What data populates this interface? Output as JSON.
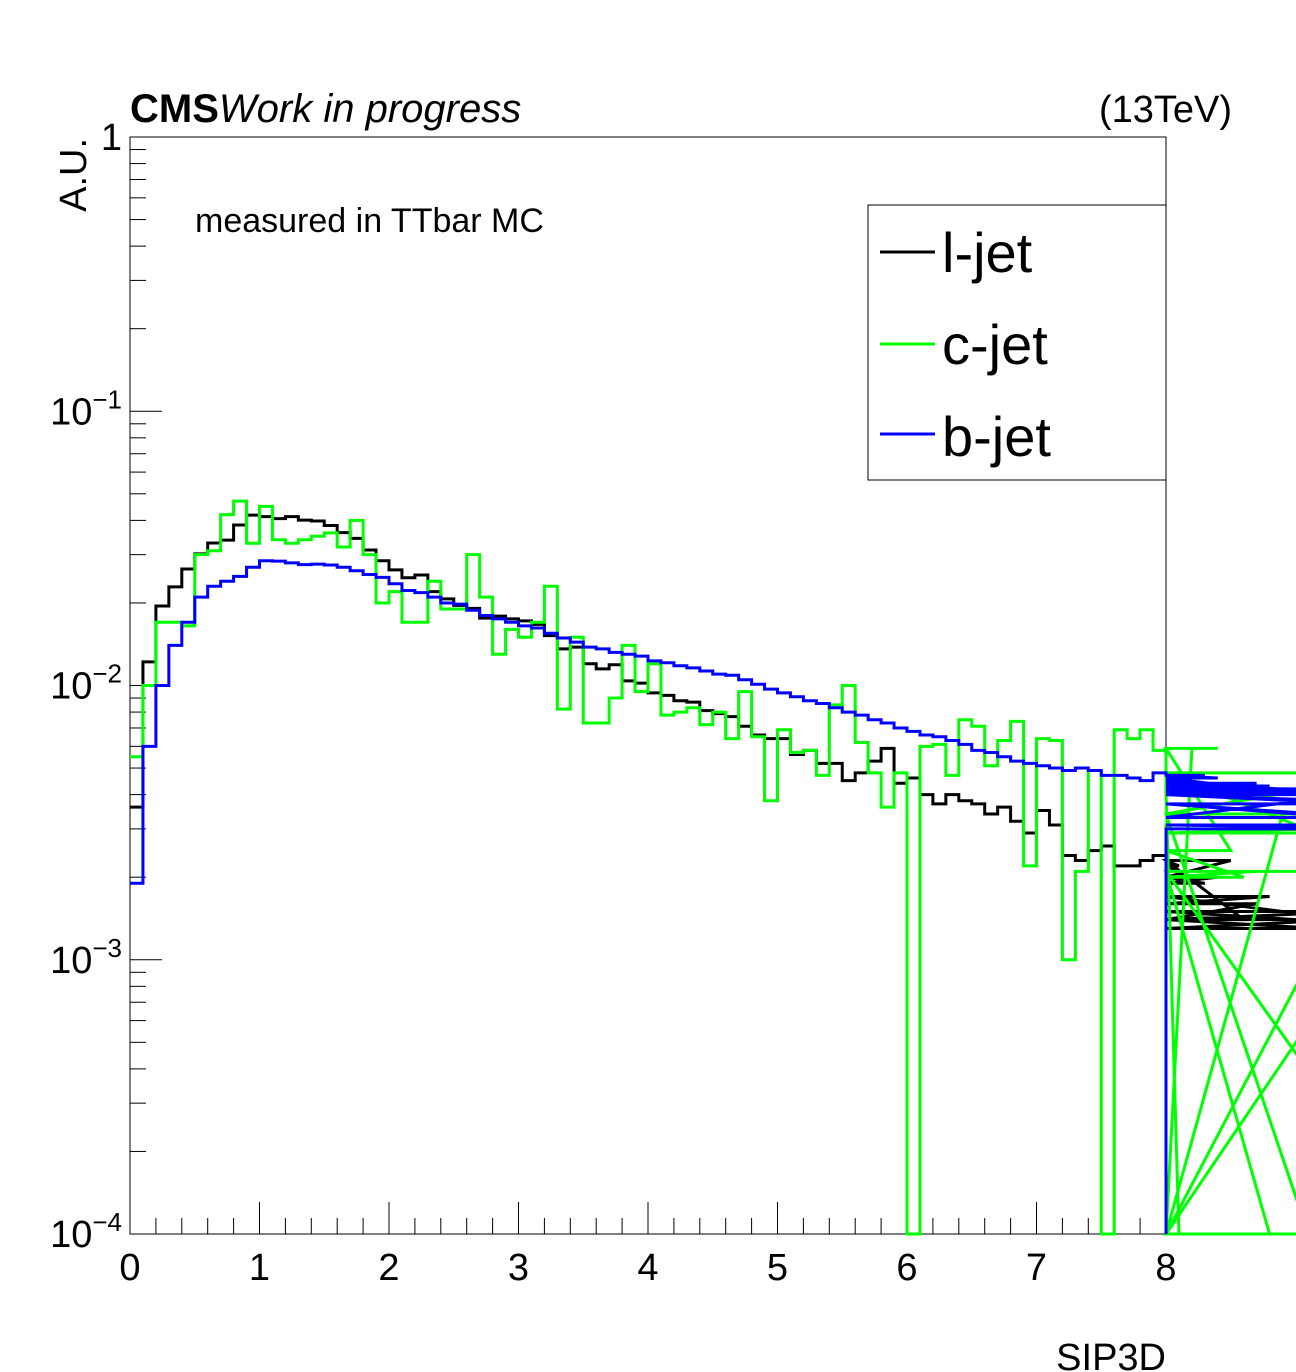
{
  "header": {
    "cms": "CMS",
    "work": "Work in progress",
    "energy": "(13TeV)"
  },
  "annotation": "measured in TTbar MC",
  "chart_data": {
    "type": "line",
    "title": "",
    "xlabel": "SIP3D",
    "ylabel": "A.U.",
    "xlim": [
      0,
      8
    ],
    "ylim": [
      0.0001,
      1
    ],
    "yscale": "log",
    "grid": false,
    "legend_position": "top-right",
    "bin_width": 0.1,
    "x_ticks": [
      "0",
      "1",
      "2",
      "3",
      "4",
      "5",
      "6",
      "7",
      "8"
    ],
    "y_ticks": [
      {
        "value": 0.0001,
        "base": "10",
        "exp": "−4"
      },
      {
        "value": 0.001,
        "base": "10",
        "exp": "−3"
      },
      {
        "value": 0.01,
        "base": "10",
        "exp": "−2"
      },
      {
        "value": 0.1,
        "base": "10",
        "exp": "−1"
      },
      {
        "value": 1,
        "base": "1",
        "exp": ""
      }
    ],
    "series": [
      {
        "name": "l-jet",
        "color": "#000000",
        "values": [
          0.0036,
          0.0122,
          0.0195,
          0.0229,
          0.0266,
          0.0302,
          0.0331,
          0.0339,
          0.0385,
          0.0418,
          0.0413,
          0.0406,
          0.0413,
          0.0401,
          0.0398,
          0.0383,
          0.0361,
          0.0344,
          0.0312,
          0.0285,
          0.0264,
          0.0247,
          0.0253,
          0.022,
          0.0207,
          0.0196,
          0.0191,
          0.0176,
          0.0179,
          0.0175,
          0.0172,
          0.0167,
          0.0152,
          0.0136,
          0.0138,
          0.012,
          0.0115,
          0.0119,
          0.0104,
          0.0102,
          0.0094,
          0.0092,
          0.0088,
          0.0087,
          0.0081,
          0.0079,
          0.0077,
          0.0071,
          0.0066,
          0.0064,
          0.0064,
          0.0056,
          0.0058,
          0.0052,
          0.0052,
          0.0045,
          0.0048,
          0.0053,
          0.0059,
          0.0044,
          0.0046,
          0.004,
          0.0037,
          0.004,
          0.0038,
          0.0037,
          0.0034,
          0.0036,
          0.0032,
          0.0029,
          0.0035,
          0.0031,
          0.0024,
          0.0023,
          0.0025,
          0.0026,
          0.0022,
          0.0022,
          0.0023,
          0.0024,
          0.0023,
          0.0022,
          0.002,
          0.0019,
          0.002,
          0.0023,
          0.0014,
          0.0016,
          0.0017,
          0.0015,
          0.0014,
          0.0014,
          0.0013,
          0.0013,
          0.0014,
          0.0015,
          0.0015
        ]
      },
      {
        "name": "c-jet",
        "color": "#00ff00",
        "values": [
          0.0055,
          0.01,
          0.017,
          0.017,
          0.0165,
          0.03,
          0.031,
          0.042,
          0.047,
          0.033,
          0.045,
          0.034,
          0.033,
          0.034,
          0.035,
          0.036,
          0.032,
          0.04,
          0.03,
          0.02,
          0.022,
          0.017,
          0.017,
          0.024,
          0.019,
          0.019,
          0.03,
          0.021,
          0.013,
          0.016,
          0.015,
          0.017,
          0.023,
          0.0082,
          0.015,
          0.0073,
          0.0073,
          0.009,
          0.014,
          0.0095,
          0.012,
          0.0078,
          0.008,
          0.0083,
          0.0072,
          0.008,
          0.0064,
          0.0095,
          0.0065,
          0.0038,
          0.0069,
          0.0057,
          0.0058,
          0.0047,
          0.0085,
          0.01,
          0.0062,
          0.0048,
          0.0036,
          0.0048,
          0.0001,
          0.006,
          0.0061,
          0.0047,
          0.0075,
          0.0071,
          0.0051,
          0.0063,
          0.0074,
          0.0022,
          0.0064,
          0.0063,
          0.001,
          0.0021,
          0.0049,
          0.0001,
          0.0069,
          0.0064,
          0.0069,
          0.0058,
          0.0041,
          0.0001,
          0.0059,
          0.0059,
          0.0059,
          0.0025,
          0.002,
          0.0021,
          0.0001,
          0.0034,
          0.0034,
          0.0001,
          0.0001,
          0.0001,
          0.0001,
          0.0001,
          0.0001,
          0.0034,
          0.0048,
          0.0021,
          0.0001,
          0.0029,
          0.0031
        ]
      },
      {
        "name": "b-jet",
        "color": "#0000ff",
        "values": [
          0.0019,
          0.006,
          0.01,
          0.014,
          0.017,
          0.021,
          0.023,
          0.024,
          0.025,
          0.027,
          0.0285,
          0.0284,
          0.028,
          0.0276,
          0.0277,
          0.0275,
          0.027,
          0.0262,
          0.0254,
          0.0248,
          0.0235,
          0.0222,
          0.0218,
          0.021,
          0.02,
          0.0198,
          0.0188,
          0.018,
          0.0175,
          0.017,
          0.0165,
          0.0162,
          0.0155,
          0.0149,
          0.0144,
          0.0138,
          0.0136,
          0.0132,
          0.013,
          0.0128,
          0.0123,
          0.0121,
          0.0118,
          0.0116,
          0.0113,
          0.011,
          0.0109,
          0.0105,
          0.0101,
          0.0097,
          0.0094,
          0.0091,
          0.0088,
          0.0086,
          0.0083,
          0.008,
          0.0078,
          0.0075,
          0.0073,
          0.007,
          0.0068,
          0.0066,
          0.0065,
          0.0063,
          0.0061,
          0.0058,
          0.0057,
          0.0055,
          0.0053,
          0.0052,
          0.0051,
          0.005,
          0.0049,
          0.005,
          0.0049,
          0.0047,
          0.0047,
          0.0046,
          0.0045,
          0.0048,
          0.0047,
          0.0046,
          0.0045,
          0.0047,
          0.0046,
          0.0043,
          0.0044,
          0.0044,
          0.0043,
          0.0042,
          0.0042,
          0.0041,
          0.004,
          0.0041,
          0.004,
          0.0037,
          0.0033,
          0.0033,
          0.0042,
          0.004,
          0.0037,
          0.0031,
          0.003
        ]
      }
    ]
  }
}
